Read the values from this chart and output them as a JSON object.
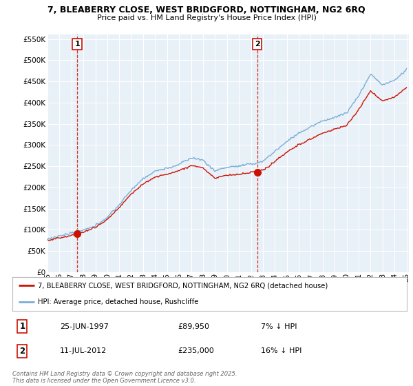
{
  "title_line1": "7, BLEABERRY CLOSE, WEST BRIDGFORD, NOTTINGHAM, NG2 6RQ",
  "title_line2": "Price paid vs. HM Land Registry's House Price Index (HPI)",
  "background_color": "#e8f0f8",
  "plot_bg_color": "#e8f0f8",
  "hpi_color": "#7aaed6",
  "price_color": "#cc1100",
  "grid_color": "#ffffff",
  "sale1_year": 1997.48,
  "sale1_price": 89950,
  "sale1_label": "1",
  "sale2_year": 2012.53,
  "sale2_price": 235000,
  "sale2_label": "2",
  "ylim_min": 0,
  "ylim_max": 560000,
  "yticks": [
    0,
    50000,
    100000,
    150000,
    200000,
    250000,
    300000,
    350000,
    400000,
    450000,
    500000,
    550000
  ],
  "xlim_min": 1995.3,
  "xlim_max": 2025.2,
  "xticks": [
    1995,
    1996,
    1997,
    1998,
    1999,
    2000,
    2001,
    2002,
    2003,
    2004,
    2005,
    2006,
    2007,
    2008,
    2009,
    2010,
    2011,
    2012,
    2013,
    2014,
    2015,
    2016,
    2017,
    2018,
    2019,
    2020,
    2021,
    2022,
    2023,
    2024,
    2025
  ],
  "legend_label_red": "7, BLEABERRY CLOSE, WEST BRIDGFORD, NOTTINGHAM, NG2 6RQ (detached house)",
  "legend_label_blue": "HPI: Average price, detached house, Rushcliffe",
  "annotation1_date": "25-JUN-1997",
  "annotation1_price": "£89,950",
  "annotation1_pct": "7% ↓ HPI",
  "annotation2_date": "11-JUL-2012",
  "annotation2_price": "£235,000",
  "annotation2_pct": "16% ↓ HPI",
  "footer": "Contains HM Land Registry data © Crown copyright and database right 2025.\nThis data is licensed under the Open Government Licence v3.0."
}
